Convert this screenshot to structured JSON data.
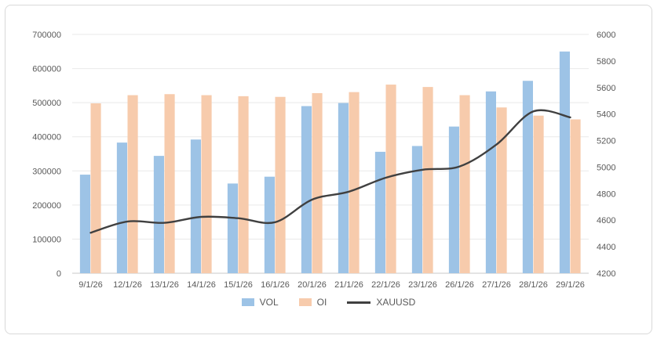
{
  "chart_data": {
    "type": "bar",
    "subtype": "combo-bar-line",
    "categories": [
      "9/1/26",
      "12/1/26",
      "13/1/26",
      "14/1/26",
      "15/1/26",
      "16/1/26",
      "20/1/26",
      "21/1/26",
      "22/1/26",
      "23/1/26",
      "26/1/26",
      "27/1/26",
      "28/1/26",
      "29/1/26"
    ],
    "series": [
      {
        "name": "VOL",
        "type": "bar",
        "axis": "left",
        "color": "#9DC3E6",
        "values": [
          289000,
          383000,
          344000,
          392000,
          263000,
          283000,
          490000,
          499000,
          356000,
          373000,
          430000,
          533000,
          564000,
          650000
        ]
      },
      {
        "name": "OI",
        "type": "bar",
        "axis": "left",
        "color": "#F7CBAC",
        "values": [
          498000,
          522000,
          525000,
          522000,
          519000,
          517000,
          528000,
          531000,
          553000,
          546000,
          522000,
          486000,
          462000,
          451000
        ]
      },
      {
        "name": "XAUUSD",
        "type": "line",
        "axis": "right",
        "color": "#404040",
        "values": [
          4505,
          4590,
          4580,
          4625,
          4615,
          4585,
          4755,
          4815,
          4920,
          4980,
          5005,
          5170,
          5420,
          5375
        ]
      }
    ],
    "left_axis": {
      "min": 0,
      "max": 700000,
      "step": 100000,
      "tick_labels": [
        "0",
        "100000",
        "200000",
        "300000",
        "400000",
        "500000",
        "600000",
        "700000"
      ]
    },
    "right_axis": {
      "min": 4200,
      "max": 6000,
      "step": 200,
      "tick_labels": [
        "4200",
        "4400",
        "4600",
        "4800",
        "5000",
        "5200",
        "5400",
        "5600",
        "5800",
        "6000"
      ]
    },
    "grid": true,
    "legend_position": "bottom",
    "legend": [
      {
        "label": "VOL",
        "marker": "square",
        "color": "#9DC3E6"
      },
      {
        "label": "OI",
        "marker": "square",
        "color": "#F7CBAC"
      },
      {
        "label": "XAUUSD",
        "marker": "line",
        "color": "#404040"
      }
    ]
  },
  "colors": {
    "gridline": "#E9E9E9",
    "axis_line": "#C9C9C9",
    "tick_text": "#595959",
    "card_border": "#D9D9D9",
    "background": "#FFFFFF"
  }
}
